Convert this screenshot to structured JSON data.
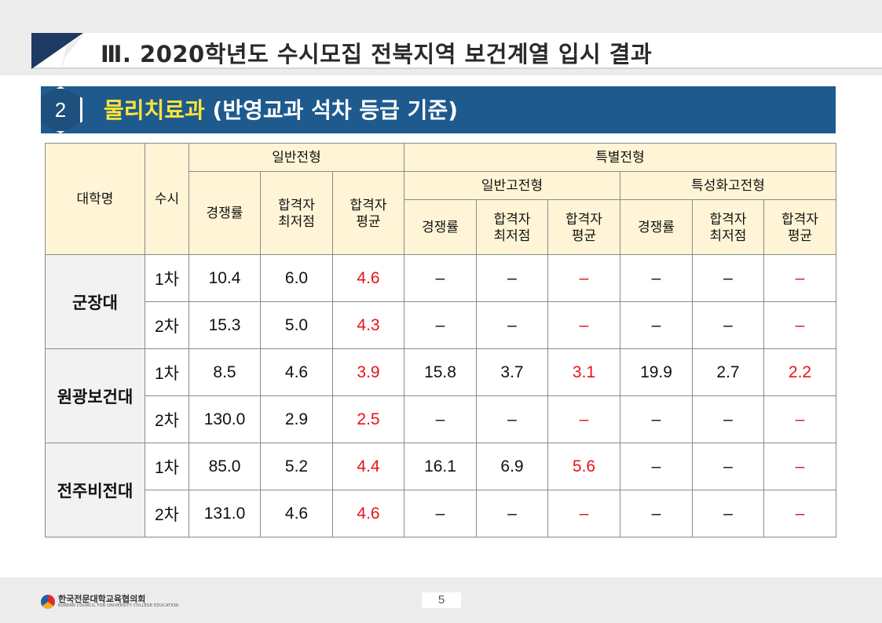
{
  "header": {
    "title": "Ⅲ. 2020학년도 수시모집 전북지역 보건계열 입시 결과"
  },
  "section": {
    "number": "2",
    "title_highlight": "물리치료과",
    "title_rest": " (반영교과  석차 등급 기준)"
  },
  "table": {
    "headers": {
      "university": "대학명",
      "round": "수시",
      "general": "일반전형",
      "special": "특별전형",
      "general_hs": "일반고전형",
      "specialized_hs": "특성화고전형",
      "competition": "경쟁률",
      "min_score": "합격자\n최저점",
      "avg_score": "합격자\n평균"
    },
    "rows": [
      {
        "university": "군장대",
        "round": "1차",
        "cells": [
          "10.4",
          "6.0",
          "4.6",
          "–",
          "–",
          "–",
          "–",
          "–",
          "–"
        ]
      },
      {
        "round": "2차",
        "cells": [
          "15.3",
          "5.0",
          "4.3",
          "–",
          "–",
          "–",
          "–",
          "–",
          "–"
        ]
      },
      {
        "university": "원광보건대",
        "round": "1차",
        "cells": [
          "8.5",
          "4.6",
          "3.9",
          "15.8",
          "3.7",
          "3.1",
          "19.9",
          "2.7",
          "2.2"
        ]
      },
      {
        "round": "2차",
        "cells": [
          "130.0",
          "2.9",
          "2.5",
          "–",
          "–",
          "–",
          "–",
          "–",
          "–"
        ]
      },
      {
        "university": "전주비전대",
        "round": "1차",
        "cells": [
          "85.0",
          "5.2",
          "4.4",
          "16.1",
          "6.9",
          "5.6",
          "–",
          "–",
          "–"
        ]
      },
      {
        "round": "2차",
        "cells": [
          "131.0",
          "4.6",
          "4.6",
          "–",
          "–",
          "–",
          "–",
          "–",
          "–"
        ]
      }
    ]
  },
  "footer": {
    "org_name": "한국전문대학교육협의회",
    "org_name_en": "KOREAN COUNCIL FOR UNIVERSITY COLLEGE EDUCATION",
    "page_number": "5"
  },
  "colors": {
    "navy": "#1e3a64",
    "section_blue": "#1e5a8e",
    "highlight_yellow": "#ffe43a",
    "header_cream": "#fff5d6",
    "average_red": "#e6121a"
  }
}
